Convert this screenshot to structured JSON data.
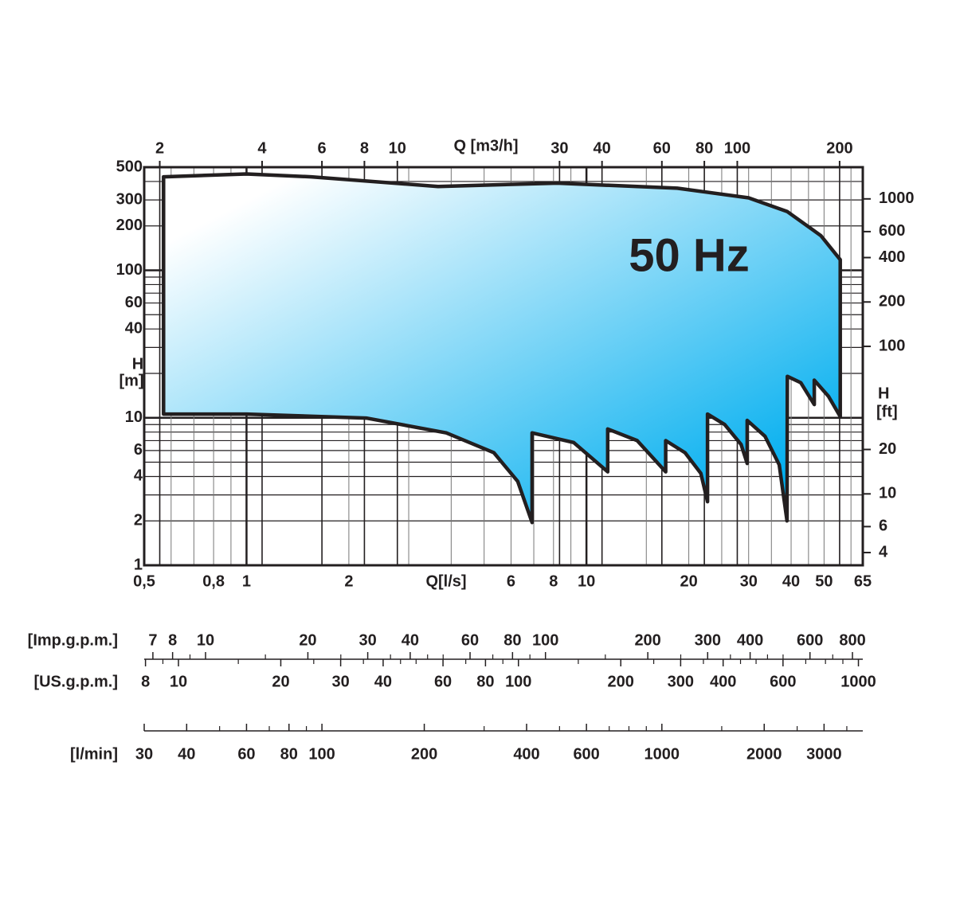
{
  "chart_data": {
    "type": "area",
    "title": "50 Hz",
    "log_x": true,
    "log_y": true,
    "color": "#00aeef",
    "edge_color": "#231f20",
    "x": [
      0.57,
      1.0,
      1.55,
      3.66,
      8.2,
      18.5,
      30,
      39,
      48.9,
      55.8,
      55.8,
      51.5,
      46.8,
      46.8,
      42.7,
      39,
      38.9,
      36.9,
      33.5,
      29.7,
      29.7,
      28.5,
      25.5,
      22.7,
      22.7,
      21.7,
      19.5,
      17.1,
      17.1,
      14.1,
      11.55,
      11.55,
      9.17,
      6.92,
      6.92,
      6.28,
      5.34,
      3.87,
      2.25,
      1.0,
      0.57
    ],
    "y": [
      430,
      450,
      430,
      370,
      390,
      360,
      310,
      250,
      172,
      118,
      10.2,
      14.0,
      18.0,
      12.3,
      17.3,
      19.1,
      2.0,
      4.8,
      7.5,
      9.6,
      4.9,
      6.6,
      9.0,
      10.6,
      2.7,
      4.2,
      5.8,
      7.0,
      4.3,
      7.0,
      8.4,
      4.3,
      6.8,
      7.9,
      1.95,
      3.7,
      5.8,
      7.9,
      9.95,
      10.6,
      10.6
    ],
    "xlabel": "Q[l/s]",
    "xlim": [
      0.5,
      65
    ],
    "xticks": [
      {
        "value": 0.5,
        "label": "0,5"
      },
      {
        "value": 0.8,
        "label": "0,8"
      },
      1,
      2,
      6,
      8,
      10,
      20,
      30,
      40,
      50,
      65
    ],
    "xminor": [
      0.6,
      0.7,
      0.9,
      3,
      4,
      5,
      7,
      9,
      15,
      25,
      35,
      45,
      60
    ],
    "x2label": "Q [m3/h]",
    "x2lim": [
      1.8,
      234
    ],
    "x2ticks": [
      2,
      4,
      6,
      8,
      10,
      30,
      40,
      60,
      80,
      100,
      200
    ],
    "ylabel": [
      "H",
      "[m]"
    ],
    "ylim": [
      1,
      500
    ],
    "yticks": [
      1,
      2,
      4,
      6,
      10,
      40,
      60,
      100,
      200,
      300,
      500
    ],
    "yminor": [
      3,
      5,
      7,
      8,
      9,
      20,
      30,
      50,
      70,
      80,
      90,
      400
    ],
    "y2label": [
      "H",
      "[ft]"
    ],
    "y2lim": [
      3.28,
      1640
    ],
    "y2ticks": [
      4,
      6,
      10,
      20,
      100,
      200,
      400,
      600,
      1000
    ],
    "grid": true,
    "scales": [
      {
        "name": "[Imp.g.p.m.]",
        "lim": [
          6.6,
          858
        ],
        "ticks": [
          7,
          8,
          10,
          20,
          30,
          40,
          60,
          80,
          100,
          200,
          300,
          400,
          600,
          800
        ],
        "minor": [
          9,
          15,
          25,
          35,
          45,
          50,
          70,
          90,
          150,
          250,
          350,
          450,
          500,
          700
        ]
      },
      {
        "name": "[US.g.p.m.]",
        "lim": [
          7.93,
          1030
        ],
        "ticks": [
          8,
          10,
          20,
          30,
          40,
          60,
          80,
          100,
          200,
          300,
          400,
          600,
          1000
        ],
        "minor": [
          9,
          15,
          25,
          35,
          45,
          50,
          70,
          90,
          150,
          250,
          350,
          450,
          500,
          700,
          800,
          900
        ]
      },
      {
        "name": "[l/min]",
        "lim": [
          30,
          3900
        ],
        "ticks": [
          30,
          40,
          60,
          80,
          100,
          200,
          400,
          600,
          1000,
          2000,
          3000
        ],
        "minor": [
          50,
          70,
          90,
          300,
          500,
          700,
          800,
          900,
          1500,
          2500,
          3500
        ]
      }
    ]
  }
}
